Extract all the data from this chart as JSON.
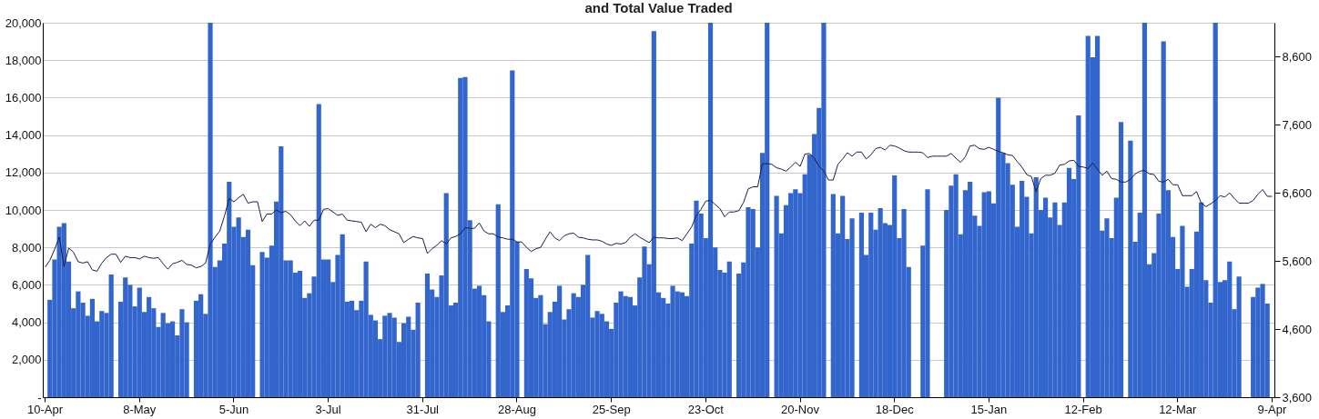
{
  "chart_data": {
    "type": "bar",
    "title": "and Total Value Traded",
    "categories": [
      "10-Apr",
      null,
      null,
      null,
      null,
      null,
      null,
      null,
      null,
      null,
      null,
      null,
      null,
      null,
      null,
      null,
      null,
      null,
      null,
      null,
      "8-May",
      null,
      null,
      null,
      null,
      null,
      null,
      null,
      null,
      null,
      null,
      null,
      null,
      null,
      null,
      null,
      null,
      null,
      null,
      null,
      "5-Jun",
      null,
      null,
      null,
      null,
      null,
      null,
      null,
      null,
      null,
      null,
      null,
      null,
      null,
      null,
      null,
      null,
      null,
      null,
      null,
      "3-Jul",
      null,
      null,
      null,
      null,
      null,
      null,
      null,
      null,
      null,
      null,
      null,
      null,
      null,
      null,
      null,
      null,
      null,
      null,
      null,
      "31-Jul",
      null,
      null,
      null,
      null,
      null,
      null,
      null,
      null,
      null,
      null,
      null,
      null,
      null,
      null,
      null,
      null,
      null,
      null,
      null,
      "28-Aug",
      null,
      null,
      null,
      null,
      null,
      null,
      null,
      null,
      null,
      null,
      null,
      null,
      null,
      null,
      null,
      null,
      null,
      null,
      null,
      "25-Sep",
      null,
      null,
      null,
      null,
      null,
      null,
      null,
      null,
      null,
      null,
      null,
      null,
      null,
      null,
      null,
      null,
      null,
      null,
      null,
      "23-Oct",
      null,
      null,
      null,
      null,
      null,
      null,
      null,
      null,
      null,
      null,
      null,
      null,
      null,
      null,
      null,
      null,
      null,
      null,
      null,
      "20-Nov",
      null,
      null,
      null,
      null,
      null,
      null,
      null,
      null,
      null,
      null,
      null,
      null,
      null,
      null,
      null,
      null,
      null,
      null,
      null,
      "18-Dec",
      null,
      null,
      null,
      null,
      null,
      null,
      null,
      null,
      null,
      null,
      null,
      null,
      null,
      null,
      null,
      null,
      null,
      null,
      null,
      "15-Jan",
      null,
      null,
      null,
      null,
      null,
      null,
      null,
      null,
      null,
      null,
      null,
      null,
      null,
      null,
      null,
      null,
      null,
      null,
      null,
      "12-Feb",
      null,
      null,
      null,
      null,
      null,
      null,
      null,
      null,
      null,
      null,
      null,
      null,
      null,
      null,
      null,
      null,
      null,
      null,
      null,
      "12-Mar",
      null,
      null,
      null,
      null,
      null,
      null,
      null,
      null,
      null,
      null,
      null,
      null,
      null,
      null,
      null,
      null,
      null,
      null,
      null,
      "9-Apr"
    ],
    "series": [
      {
        "color": "#3366cc",
        "values": [
          null,
          5200,
          7350,
          9100,
          9300,
          7250,
          4750,
          5650,
          5050,
          4350,
          5250,
          4050,
          4600,
          4500,
          6550,
          null,
          5100,
          6400,
          6000,
          4850,
          5850,
          4550,
          5350,
          4750,
          3750,
          4500,
          3950,
          4050,
          3300,
          4700,
          4000,
          null,
          5150,
          5500,
          4450,
          20000,
          6950,
          7300,
          8200,
          11500,
          9100,
          9600,
          8550,
          8950,
          7050,
          null,
          7750,
          7450,
          8100,
          10450,
          13400,
          7300,
          7300,
          6650,
          6750,
          5300,
          5550,
          6450,
          15650,
          7350,
          7350,
          6150,
          7600,
          8700,
          5100,
          5150,
          4650,
          5150,
          7250,
          4400,
          4100,
          3100,
          4350,
          4500,
          4250,
          2950,
          3950,
          4300,
          3600,
          5050,
          null,
          6600,
          5750,
          5350,
          6500,
          10900,
          4900,
          5050,
          17050,
          17100,
          9450,
          5800,
          5950,
          5450,
          4050,
          null,
          10300,
          4550,
          4900,
          17450,
          8300,
          null,
          6850,
          6350,
          5300,
          5450,
          3900,
          4550,
          5100,
          5950,
          4150,
          4700,
          5550,
          5350,
          6000,
          7600,
          4250,
          4600,
          4450,
          4050,
          3650,
          5050,
          5650,
          5400,
          5350,
          4900,
          6400,
          8050,
          7100,
          19550,
          5600,
          5300,
          5000,
          5950,
          5650,
          5600,
          5400,
          8200,
          10500,
          9800,
          8500,
          20000,
          8000,
          6800,
          6650,
          7250,
          null,
          6600,
          7200,
          10150,
          10050,
          8000,
          13050,
          20000,
          null,
          10750,
          8750,
          10250,
          10900,
          11100,
          10900,
          11900,
          12950,
          14050,
          15450,
          20000,
          null,
          10850,
          8750,
          10750,
          8450,
          9550,
          null,
          9850,
          7600,
          9850,
          8950,
          10100,
          9300,
          9200,
          11850,
          8500,
          10050,
          6950,
          null,
          null,
          8100,
          11100,
          null,
          null,
          null,
          10000,
          11300,
          11900,
          8700,
          11050,
          11500,
          9700,
          9150,
          10950,
          11000,
          10350,
          16000,
          13050,
          12500,
          11350,
          9100,
          11550,
          10700,
          8750,
          11750,
          10000,
          10650,
          9600,
          10400,
          9200,
          10400,
          12250,
          11650,
          15050,
          null,
          19300,
          18150,
          19300,
          8900,
          9550,
          8500,
          10650,
          14700,
          null,
          13700,
          8300,
          9850,
          20000,
          7100,
          7700,
          9800,
          19000,
          11050,
          8550,
          6850,
          9150,
          5900,
          6850,
          8850,
          10400,
          6250,
          5050,
          20000,
          6150,
          6250,
          7250,
          4700,
          6450,
          null,
          null,
          5350,
          5850,
          6050,
          5000,
          null
        ]
      },
      {
        "type": "line",
        "axis": "y2",
        "color": "#1c1c4a",
        "values": [
          5510,
          5610,
          5770,
          5950,
          5520,
          5790,
          5730,
          5590,
          5570,
          5590,
          5470,
          5450,
          5570,
          5650,
          5700,
          5700,
          5580,
          5670,
          5650,
          5650,
          5630,
          5670,
          5650,
          5640,
          5650,
          5560,
          5480,
          5560,
          5580,
          5610,
          5550,
          5540,
          5500,
          5520,
          5570,
          5850,
          5950,
          6040,
          6260,
          6520,
          6470,
          6530,
          6580,
          6450,
          6470,
          6470,
          6180,
          6290,
          6290,
          6350,
          6310,
          6330,
          6280,
          6190,
          6120,
          6190,
          6110,
          6200,
          6200,
          6360,
          6370,
          6320,
          6270,
          6290,
          6200,
          6190,
          6180,
          6170,
          6030,
          6140,
          6090,
          6140,
          6120,
          6060,
          6030,
          6000,
          5870,
          5920,
          5960,
          5940,
          5930,
          5710,
          5780,
          5830,
          5900,
          5850,
          5940,
          5960,
          6000,
          6090,
          6080,
          6080,
          6160,
          6040,
          6000,
          6000,
          5950,
          5940,
          5920,
          5920,
          5880,
          5880,
          5800,
          5740,
          5780,
          5800,
          5920,
          6030,
          5940,
          5900,
          5970,
          6000,
          6010,
          5950,
          5940,
          5920,
          5910,
          5910,
          5890,
          5850,
          5830,
          5860,
          5850,
          5870,
          5950,
          6000,
          5950,
          5910,
          5870,
          5950,
          5940,
          5940,
          5930,
          5930,
          5940,
          5900,
          6000,
          6100,
          6270,
          6360,
          6480,
          6490,
          6430,
          6370,
          6250,
          6320,
          6320,
          6340,
          6460,
          6660,
          6690,
          6690,
          7030,
          7030,
          7020,
          6970,
          6950,
          6920,
          6980,
          7050,
          6990,
          7170,
          7180,
          7110,
          6990,
          6920,
          6790,
          6790,
          7020,
          7100,
          7190,
          7140,
          7200,
          7200,
          7100,
          7160,
          7250,
          7270,
          7230,
          7300,
          7290,
          7260,
          7220,
          7200,
          7200,
          7200,
          7190,
          7120,
          7140,
          7140,
          7140,
          7140,
          7180,
          7110,
          7050,
          7130,
          7290,
          7300,
          7250,
          7240,
          7270,
          7240,
          7210,
          7190,
          7160,
          7150,
          7060,
          6980,
          6870,
          6840,
          6620,
          6810,
          6860,
          6860,
          6890,
          7010,
          7020,
          7070,
          7080,
          6990,
          6980,
          6960,
          7040,
          6950,
          6860,
          6920,
          6810,
          6800,
          6760,
          6760,
          6800,
          6880,
          6920,
          6930,
          6880,
          6870,
          6770,
          6760,
          6800,
          6720,
          6720,
          6560,
          6560,
          6560,
          6620,
          6450,
          6400,
          6440,
          6490,
          6560,
          6540,
          6600,
          6520,
          6450,
          6450,
          6450,
          6490,
          6580,
          6650,
          6550,
          6550
        ]
      }
    ],
    "ylim": [
      0,
      20000
    ],
    "yticks": [
      {
        "value": 0,
        "label": "-"
      },
      {
        "value": 2000,
        "label": "2,000"
      },
      {
        "value": 4000,
        "label": "4,000"
      },
      {
        "value": 6000,
        "label": "6,000"
      },
      {
        "value": 8000,
        "label": "8,000"
      },
      {
        "value": 10000,
        "label": "10,000"
      },
      {
        "value": 12000,
        "label": "12,000"
      },
      {
        "value": 14000,
        "label": "14,000"
      },
      {
        "value": 16000,
        "label": "16,000"
      },
      {
        "value": 18000,
        "label": "18,000"
      },
      {
        "value": 20000,
        "label": "20,000"
      }
    ],
    "y2lim": [
      3600,
      9100
    ],
    "y2ticks": [
      {
        "value": 3600,
        "label": "3,600"
      },
      {
        "value": 4600,
        "label": "4,600"
      },
      {
        "value": 5600,
        "label": "5,600"
      },
      {
        "value": 6600,
        "label": "6,600"
      },
      {
        "value": 7600,
        "label": "7,600"
      },
      {
        "value": 8600,
        "label": "8,600"
      }
    ],
    "grid": "y"
  }
}
